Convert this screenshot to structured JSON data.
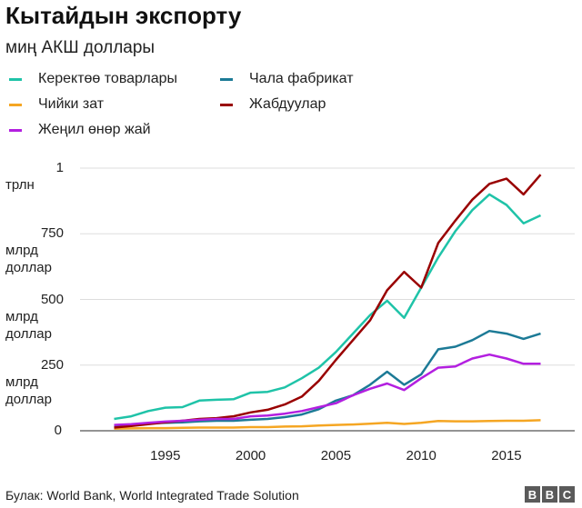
{
  "chart_data": {
    "type": "line",
    "title": "Кытайдын экспорту",
    "subtitle": "миң  АКШ доллары",
    "x": [
      1992,
      1993,
      1994,
      1995,
      1996,
      1997,
      1998,
      1999,
      2000,
      2001,
      2002,
      2003,
      2004,
      2005,
      2006,
      2007,
      2008,
      2009,
      2010,
      2011,
      2012,
      2013,
      2014,
      2015,
      2016,
      2017
    ],
    "xlim": [
      1990,
      2019
    ],
    "ylim": [
      0,
      1000
    ],
    "grid": true,
    "legend_position": "top",
    "series": [
      {
        "name": "Керектөө товарлары",
        "color": "#1fc3a8",
        "values": [
          45,
          55,
          75,
          88,
          90,
          115,
          118,
          120,
          145,
          148,
          165,
          200,
          240,
          300,
          370,
          440,
          495,
          430,
          545,
          660,
          760,
          840,
          900,
          860,
          790,
          820
        ]
      },
      {
        "name": "Чала фабрикат",
        "color": "#1c7a96",
        "values": [
          20,
          22,
          28,
          30,
          32,
          36,
          38,
          38,
          42,
          45,
          52,
          62,
          82,
          115,
          135,
          175,
          225,
          175,
          215,
          310,
          320,
          345,
          380,
          370,
          350,
          370
        ]
      },
      {
        "name": "Чийки зат",
        "color": "#f5a623",
        "values": [
          8,
          9,
          10,
          10,
          11,
          12,
          12,
          12,
          14,
          14,
          16,
          17,
          20,
          22,
          24,
          27,
          30,
          26,
          30,
          37,
          36,
          36,
          37,
          38,
          38,
          40
        ]
      },
      {
        "name": "Жабдуулар",
        "color": "#990000",
        "values": [
          12,
          18,
          25,
          32,
          38,
          45,
          48,
          55,
          70,
          80,
          100,
          130,
          190,
          270,
          345,
          420,
          535,
          605,
          545,
          715,
          800,
          880,
          940,
          960,
          900,
          975
        ]
      },
      {
        "name": "Жеңил өнөр жай",
        "color": "#b31fe0",
        "values": [
          22,
          25,
          30,
          35,
          38,
          42,
          45,
          45,
          55,
          58,
          65,
          75,
          90,
          105,
          135,
          160,
          180,
          155,
          200,
          240,
          245,
          275,
          290,
          275,
          255,
          255
        ]
      }
    ],
    "y_ticks": [
      {
        "value": 0,
        "label": [
          "0"
        ]
      },
      {
        "value": 250,
        "label": [
          "250",
          "млрд",
          "доллар"
        ]
      },
      {
        "value": 500,
        "label": [
          "500",
          "млрд",
          "доллар"
        ]
      },
      {
        "value": 750,
        "label": [
          "750",
          "млрд",
          "доллар"
        ]
      },
      {
        "value": 1000,
        "label": [
          "1",
          "трлн"
        ]
      }
    ],
    "x_ticks": [
      1995,
      2000,
      2005,
      2010,
      2015
    ]
  },
  "legend_order": [
    0,
    1,
    2,
    3,
    4
  ],
  "footer": {
    "source": "Булак: World Bank, World Integrated Trade Solution",
    "logo_letters": [
      "B",
      "B",
      "C"
    ]
  }
}
